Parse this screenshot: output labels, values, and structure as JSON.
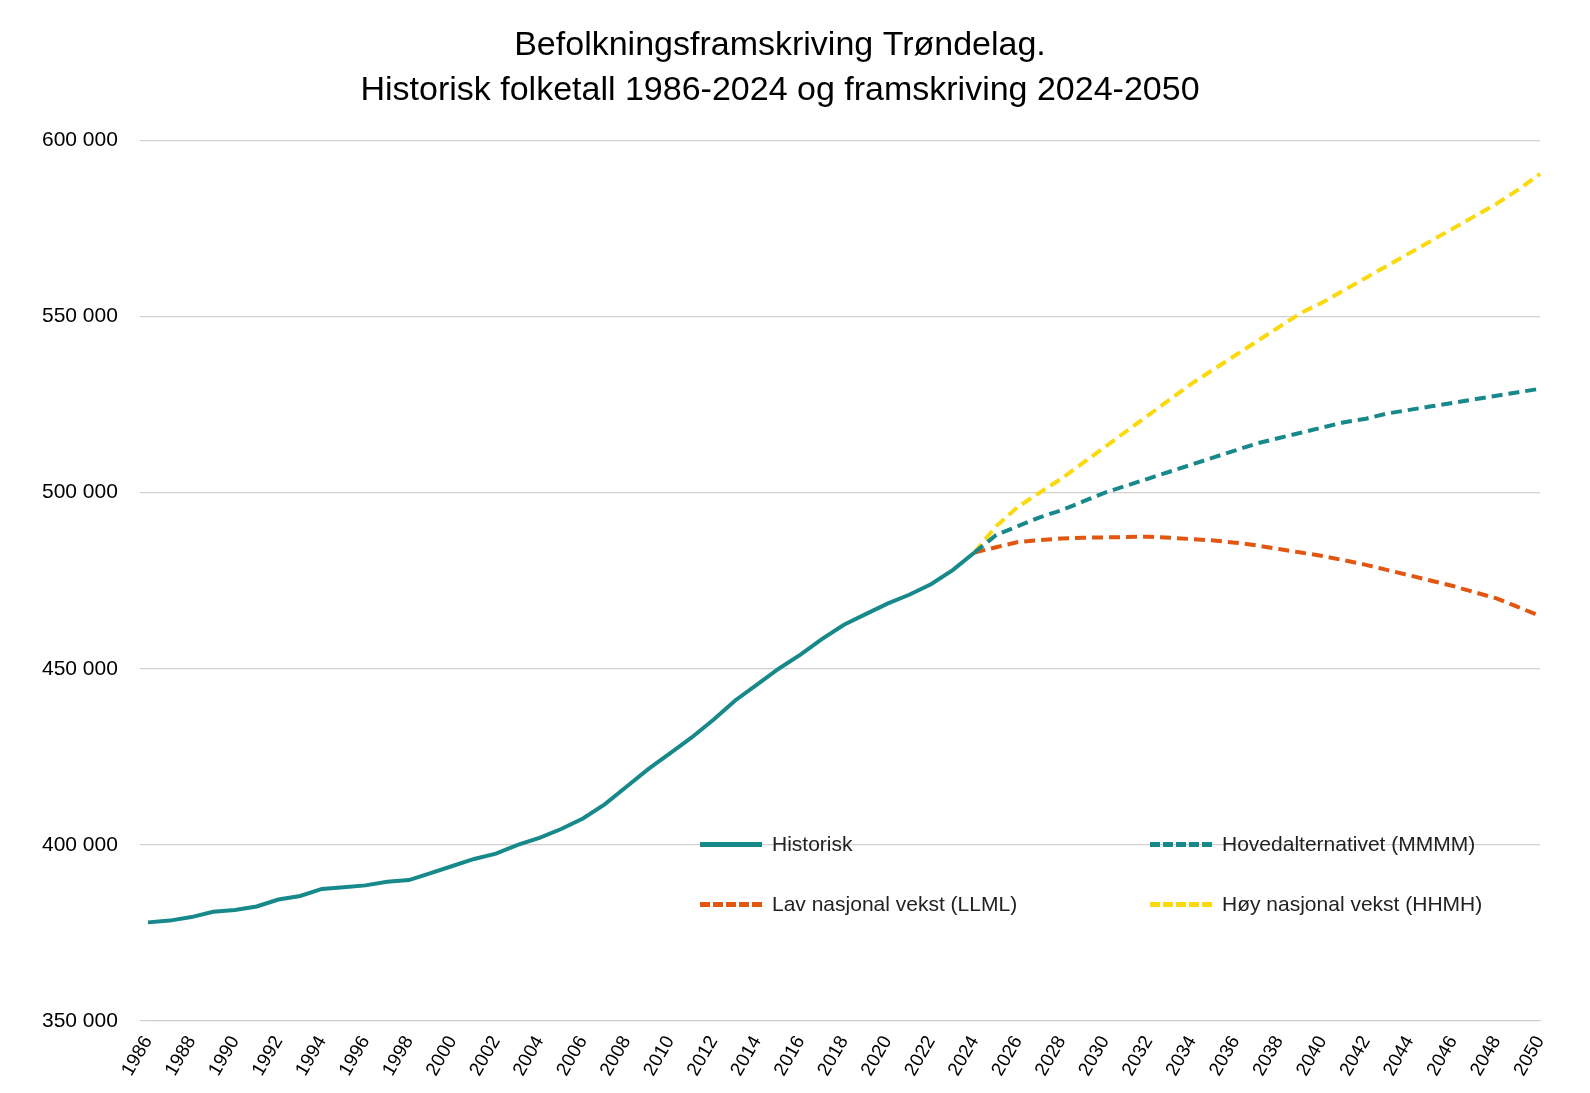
{
  "chart_data": {
    "type": "line",
    "title": [
      "Befolkningsframskriving Trøndelag.",
      "Historisk folketall 1986-2024 og framskriving 2024-2050"
    ],
    "categories": [
      "1986",
      null,
      "1988",
      null,
      "1990",
      null,
      "1992",
      null,
      "1994",
      null,
      "1996",
      null,
      "1998",
      null,
      "2000",
      null,
      "2002",
      null,
      "2004",
      null,
      "2006",
      null,
      "2008",
      null,
      "2010",
      null,
      "2012",
      null,
      "2014",
      null,
      "2016",
      null,
      "2018",
      null,
      "2020",
      null,
      "2022",
      null,
      "2024",
      null,
      "2026",
      null,
      "2028",
      null,
      "2030",
      null,
      "2032",
      null,
      "2034",
      null,
      "2036",
      null,
      "2038",
      null,
      "2040",
      null,
      "2042",
      null,
      "2044",
      null,
      "2046",
      null,
      "2048",
      null,
      "2050"
    ],
    "series": [
      {
        "name": "Historisk",
        "color": "#17898b",
        "line_style": "solid",
        "values": [
          378000,
          378500,
          379500,
          381000,
          381500,
          382500,
          384500,
          385500,
          387500,
          388000,
          388500,
          389500,
          390000,
          392000,
          394000,
          396000,
          397500,
          400000,
          402000,
          404500,
          407500,
          411500,
          416500,
          421500,
          426000,
          430500,
          435500,
          441000,
          445500,
          450000,
          454000,
          458500,
          462500,
          465500,
          468500,
          471000,
          474000,
          478000,
          483000,
          null,
          null,
          null,
          null,
          null,
          null,
          null,
          null,
          null,
          null,
          null,
          null,
          null,
          null,
          null,
          null,
          null,
          null,
          null,
          null,
          null,
          null,
          null,
          null,
          null,
          null
        ]
      },
      {
        "name": "Hovedalternativet (MMMM)",
        "color": "#17898b",
        "line_style": "dashed",
        "values": [
          null,
          null,
          null,
          null,
          null,
          null,
          null,
          null,
          null,
          null,
          null,
          null,
          null,
          null,
          null,
          null,
          null,
          null,
          null,
          null,
          null,
          null,
          null,
          null,
          null,
          null,
          null,
          null,
          null,
          null,
          null,
          null,
          null,
          null,
          null,
          null,
          null,
          null,
          483000,
          488000,
          490500,
          493000,
          495000,
          497500,
          500000,
          502000,
          504000,
          506000,
          508000,
          510000,
          512000,
          514000,
          515500,
          517000,
          518500,
          520000,
          521000,
          522500,
          523500,
          524500,
          525500,
          526500,
          527500,
          528500,
          529500
        ]
      },
      {
        "name": "Lav nasjonal vekst (LLML)",
        "color": "#e2560f",
        "line_style": "dashed",
        "values": [
          null,
          null,
          null,
          null,
          null,
          null,
          null,
          null,
          null,
          null,
          null,
          null,
          null,
          null,
          null,
          null,
          null,
          null,
          null,
          null,
          null,
          null,
          null,
          null,
          null,
          null,
          null,
          null,
          null,
          null,
          null,
          null,
          null,
          null,
          null,
          null,
          null,
          null,
          483000,
          484500,
          486000,
          486500,
          487000,
          487200,
          487300,
          487400,
          487500,
          487200,
          486800,
          486400,
          485800,
          485000,
          484000,
          483000,
          482000,
          480800,
          479500,
          478000,
          476500,
          475000,
          473500,
          471700,
          470000,
          467500,
          465000
        ]
      },
      {
        "name": "Høy nasjonal vekst (HHMH)",
        "color": "#fbd90c",
        "line_style": "dashed",
        "values": [
          null,
          null,
          null,
          null,
          null,
          null,
          null,
          null,
          null,
          null,
          null,
          null,
          null,
          null,
          null,
          null,
          null,
          null,
          null,
          null,
          null,
          null,
          null,
          null,
          null,
          null,
          null,
          null,
          null,
          null,
          null,
          null,
          null,
          null,
          null,
          null,
          null,
          null,
          483000,
          490500,
          496000,
          500000,
          504000,
          508500,
          513000,
          517500,
          522000,
          526500,
          531000,
          535000,
          539000,
          543000,
          547000,
          551000,
          554000,
          557500,
          561000,
          564500,
          568000,
          571500,
          575000,
          578500,
          582000,
          586000,
          590500
        ]
      }
    ],
    "ylim": [
      350000,
      600000
    ],
    "yticks": [
      {
        "value": 350000,
        "label": "350 000"
      },
      {
        "value": 400000,
        "label": "400 000"
      },
      {
        "value": 450000,
        "label": "450 000"
      },
      {
        "value": 500000,
        "label": "500 000"
      },
      {
        "value": 550000,
        "label": "550 000"
      },
      {
        "value": 600000,
        "label": "600 000"
      }
    ],
    "grid": true,
    "legend": "lower right"
  }
}
